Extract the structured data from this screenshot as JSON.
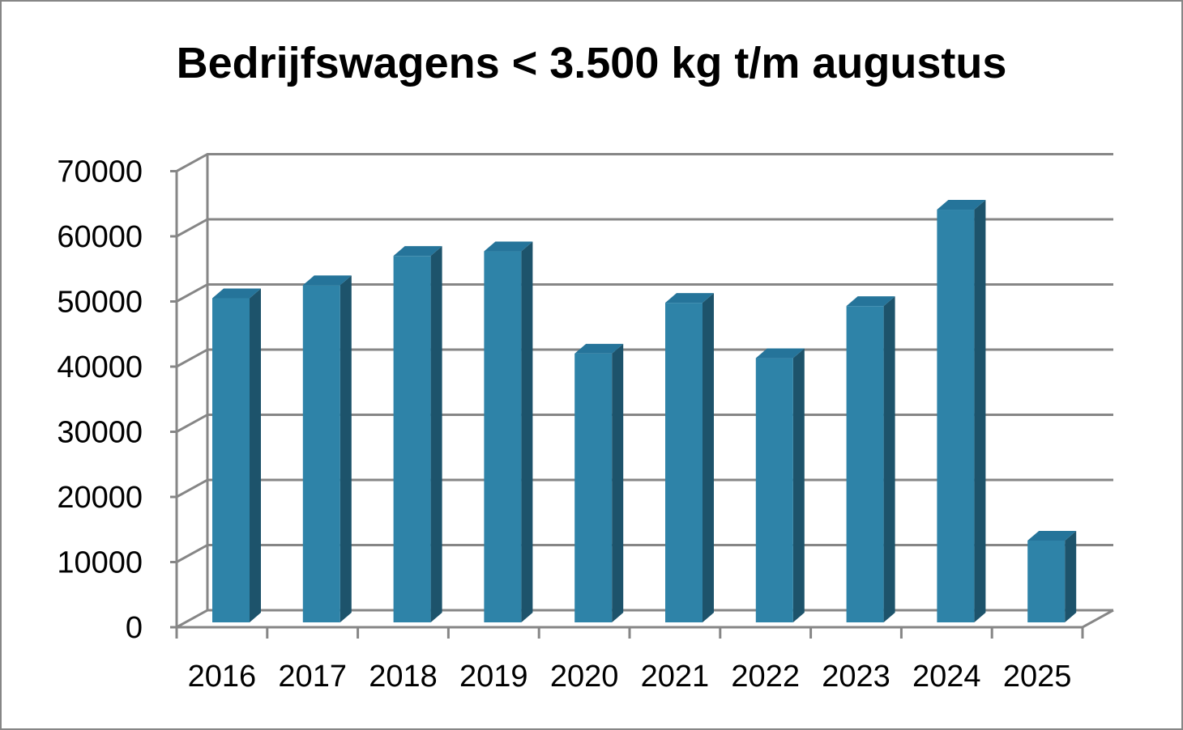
{
  "chart_data": {
    "type": "bar",
    "title": "Bedrijfswagens < 3.500 kg t/m augustus",
    "xlabel": "",
    "ylabel": "",
    "categories": [
      "2016",
      "2017",
      "2018",
      "2019",
      "2020",
      "2021",
      "2022",
      "2023",
      "2024",
      "2025"
    ],
    "values": [
      50000,
      52000,
      56500,
      57200,
      41500,
      49300,
      40800,
      48800,
      63600,
      12800
    ],
    "ylim": [
      0,
      70000
    ],
    "yticks": [
      "0",
      "10000",
      "20000",
      "30000",
      "40000",
      "50000",
      "60000",
      "70000"
    ],
    "grid": true,
    "style": "3d-column",
    "colors": {
      "front": "#2e83a8",
      "side": "#1d536b",
      "top": "#25749a",
      "grid": "#868686"
    }
  }
}
